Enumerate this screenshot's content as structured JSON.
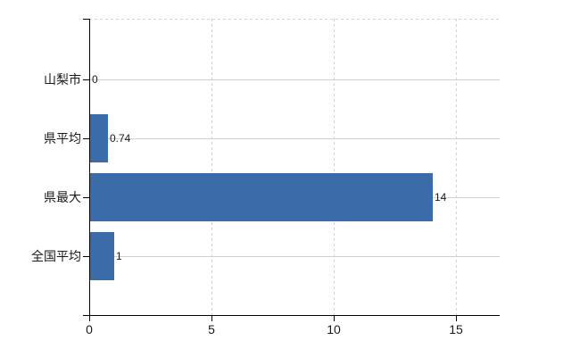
{
  "chart_data": {
    "type": "bar",
    "orientation": "horizontal",
    "title": "",
    "categories": [
      "山梨市",
      "県平均",
      "県最大",
      "全国平均"
    ],
    "values": [
      0,
      0.74,
      14,
      1
    ],
    "value_labels": [
      "0",
      "0.74",
      "14",
      "1"
    ],
    "x_ticks": [
      0,
      5,
      10,
      15
    ],
    "x_tick_labels": [
      "0",
      "5",
      "10",
      "15"
    ],
    "xlim": [
      0,
      16.8
    ],
    "legend": null,
    "grid": {
      "horizontal": true,
      "vertical": true,
      "top_border_dashed": true
    },
    "colors": {
      "bar": "#3b6ba9",
      "h_gridline": "#ccd5cc",
      "v_gridline": "#d7d0d8",
      "axis": "#000000",
      "text": "#1a1a1a",
      "background": "#ffffff"
    }
  }
}
